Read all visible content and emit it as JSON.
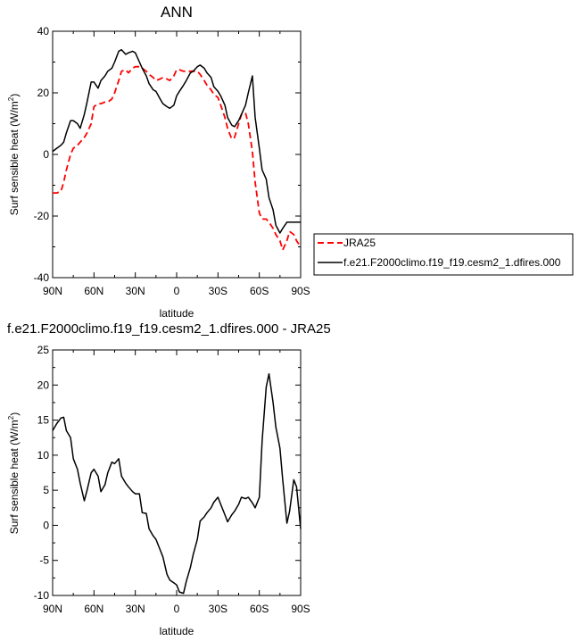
{
  "chart_data": [
    {
      "type": "line",
      "title": "ANN",
      "xlabel": "latitude",
      "ylabel": "Surf sensible heat (W/m",
      "ylabel_sup": "2",
      "ylabel_end": ")",
      "xlim": [
        90,
        -90
      ],
      "ylim": [
        -40,
        40
      ],
      "x_ticks": [
        90,
        60,
        30,
        0,
        -30,
        -60,
        -90
      ],
      "x_tick_labels": [
        "90N",
        "60N",
        "30N",
        "0",
        "30S",
        "60S",
        "90S"
      ],
      "y_ticks": [
        -40,
        -20,
        0,
        20,
        40
      ],
      "y_tick_labels": [
        "-40",
        "-20",
        "0",
        "20",
        "40"
      ],
      "legend_position": "right",
      "series": [
        {
          "name": "JRA25",
          "color": "#ff0000",
          "dash": true,
          "x": [
            90,
            87,
            84,
            82,
            80,
            77,
            75,
            72,
            70,
            67,
            65,
            62,
            60,
            57,
            55,
            52,
            50,
            47,
            45,
            42,
            40,
            37,
            35,
            32,
            30,
            27,
            25,
            22,
            20,
            17,
            15,
            12,
            10,
            7,
            5,
            2,
            0,
            -2,
            -5,
            -7,
            -10,
            -12,
            -15,
            -17,
            -20,
            -22,
            -25,
            -27,
            -30,
            -32,
            -35,
            -37,
            -40,
            -42,
            -45,
            -47,
            -50,
            -52,
            -55,
            -57,
            -60,
            -62,
            -65,
            -67,
            -70,
            -72,
            -75,
            -77,
            -80,
            -82,
            -85,
            -87,
            -90
          ],
          "values": [
            -12.5,
            -12.5,
            -12,
            -9,
            -5,
            0,
            2,
            3,
            4,
            5.5,
            7,
            10,
            15.5,
            16.5,
            16.5,
            17,
            17,
            18,
            20,
            24,
            27,
            27.5,
            26.5,
            28,
            28.5,
            28.5,
            28,
            27,
            26,
            25,
            24,
            24.5,
            25,
            24.5,
            24,
            25.5,
            27.5,
            27.5,
            27,
            27,
            27,
            27,
            27,
            26,
            24,
            22.5,
            21,
            19.5,
            18.5,
            16,
            12,
            8.5,
            5,
            5.5,
            10,
            13,
            13.5,
            10,
            1,
            -9,
            -19,
            -21,
            -21,
            -22,
            -24,
            -26,
            -28,
            -31,
            -28,
            -25,
            -26,
            -28,
            -30
          ]
        },
        {
          "name": "f.e21.F2000climo.f19_f19.cesm2_1.dfires.000",
          "color": "#000000",
          "dash": false,
          "x": [
            90,
            87,
            84,
            82,
            80,
            77,
            75,
            72,
            70,
            67,
            65,
            62,
            60,
            57,
            55,
            52,
            50,
            47,
            45,
            42,
            40,
            37,
            35,
            32,
            30,
            27,
            25,
            22,
            20,
            17,
            15,
            12,
            10,
            7,
            5,
            2,
            0,
            -2,
            -5,
            -7,
            -10,
            -12,
            -15,
            -17,
            -20,
            -22,
            -25,
            -27,
            -30,
            -32,
            -35,
            -37,
            -40,
            -42,
            -45,
            -47,
            -50,
            -52,
            -55,
            -57,
            -60,
            -62,
            -65,
            -67,
            -70,
            -72,
            -75,
            -77,
            -80,
            -82,
            -85,
            -87,
            -90
          ],
          "values": [
            1,
            2,
            3,
            4,
            7,
            11,
            11,
            10,
            8.5,
            13,
            17,
            23.5,
            23.5,
            21.5,
            24,
            25.5,
            27,
            28,
            30,
            33.5,
            34,
            32.5,
            33,
            33.5,
            33,
            30,
            28,
            25.5,
            23,
            21,
            20.5,
            18,
            16.5,
            15.5,
            15,
            16,
            19,
            20.5,
            22.5,
            24,
            26.5,
            27,
            28.5,
            29,
            28,
            26.5,
            25,
            22,
            20.5,
            19,
            16,
            12,
            9.5,
            9,
            11,
            13,
            16,
            20,
            25.5,
            12,
            2,
            -5,
            -8,
            -14,
            -18,
            -23,
            -25.5,
            -24,
            -22,
            -22,
            -22,
            -22,
            -22
          ]
        }
      ]
    },
    {
      "type": "line",
      "title": "f.e21.F2000climo.f19_f19.cesm2_1.dfires.000 - JRA25",
      "xlabel": "latitude",
      "ylabel": "Surf sensible heat (W/m",
      "ylabel_sup": "2",
      "ylabel_end": ")",
      "xlim": [
        90,
        -90
      ],
      "ylim": [
        -10,
        25
      ],
      "x_ticks": [
        90,
        60,
        30,
        0,
        -30,
        -60,
        -90
      ],
      "x_tick_labels": [
        "90N",
        "60N",
        "30N",
        "0",
        "30S",
        "60S",
        "90S"
      ],
      "y_ticks": [
        -10,
        -5,
        0,
        5,
        10,
        15,
        20,
        25
      ],
      "y_tick_labels": [
        "-10",
        "-5",
        "0",
        "5",
        "10",
        "15",
        "20",
        "25"
      ],
      "series": [
        {
          "color": "#000000",
          "dash": false,
          "x": [
            90,
            87,
            84,
            82,
            80,
            77,
            75,
            72,
            70,
            67,
            65,
            62,
            60,
            57,
            55,
            52,
            50,
            47,
            45,
            42,
            40,
            37,
            35,
            32,
            30,
            27,
            25,
            22,
            20,
            17,
            15,
            12,
            10,
            7,
            5,
            2,
            0,
            -2,
            -5,
            -7,
            -10,
            -12,
            -15,
            -17,
            -20,
            -22,
            -25,
            -27,
            -30,
            -32,
            -35,
            -37,
            -40,
            -42,
            -45,
            -47,
            -50,
            -52,
            -55,
            -57,
            -60,
            -62,
            -65,
            -67,
            -70,
            -72,
            -75,
            -77,
            -80,
            -82,
            -85,
            -87,
            -90
          ],
          "values": [
            13.5,
            14.5,
            15.3,
            15.4,
            13.5,
            12.5,
            9.5,
            8,
            6,
            3.5,
            5,
            7.5,
            8,
            7,
            4.8,
            5.8,
            7.5,
            9,
            8.8,
            9.5,
            7,
            6,
            5.5,
            4.8,
            4.5,
            4.5,
            1.8,
            1.7,
            -0.5,
            -1.5,
            -2,
            -3.5,
            -4.5,
            -7,
            -7.8,
            -8.2,
            -8.5,
            -9.5,
            -9.7,
            -8,
            -6,
            -4.2,
            -2,
            0.6,
            1.2,
            1.8,
            2.5,
            3.3,
            4,
            3,
            1.5,
            0.5,
            1.5,
            2,
            3,
            4,
            3.8,
            4,
            3.2,
            2.5,
            4,
            12,
            19.7,
            21.6,
            17.5,
            14,
            11,
            6.5,
            0.3,
            2,
            6.5,
            5.5,
            -0.5
          ]
        }
      ]
    }
  ]
}
